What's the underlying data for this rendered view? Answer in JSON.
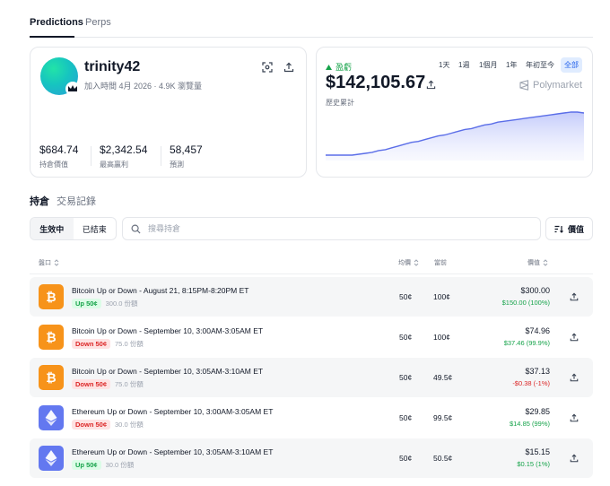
{
  "tabs": [
    {
      "label": "Predictions",
      "active": true
    },
    {
      "label": "Perps",
      "active": false
    }
  ],
  "profile": {
    "username": "trinity42",
    "joined": "加入時間 4月 2026 · 4.9K 瀏覽量",
    "stats": [
      {
        "value": "$684.74",
        "label": "持倉價值"
      },
      {
        "value": "$2,342.54",
        "label": "最高贏利"
      },
      {
        "value": "58,457",
        "label": "預測"
      }
    ]
  },
  "pnl": {
    "label": "盈虧",
    "value": "$142,105.67",
    "sub": "歷史累計",
    "brand": "Polymarket",
    "ranges": [
      "1天",
      "1週",
      "1個月",
      "1年",
      "年初至今",
      "全部"
    ],
    "active_range": "全部",
    "accent": "#5b6ee8",
    "series": [
      0,
      0,
      0,
      0,
      0,
      1,
      2,
      3,
      5,
      6,
      8,
      10,
      12,
      14,
      15,
      17,
      19,
      21,
      22,
      24,
      26,
      28,
      29,
      31,
      33,
      34,
      36,
      37,
      38,
      39,
      40,
      41,
      42,
      43,
      44,
      45,
      46,
      47,
      47,
      46
    ]
  },
  "section_tabs": [
    {
      "label": "持倉",
      "active": true
    },
    {
      "label": "交易記錄",
      "active": false
    }
  ],
  "filters": {
    "active_label": "生效中",
    "closed_label": "已結束",
    "search_placeholder": "搜尋持倉",
    "sort_label": "價值"
  },
  "table": {
    "headers": {
      "market": "盤口",
      "avg": "均價",
      "current": "當前",
      "value": "價值"
    },
    "rows": [
      {
        "coin": "btc",
        "title": "Bitcoin Up or Down - August 21, 8:15PM-8:20PM ET",
        "side": "Up 50¢",
        "dir": "up",
        "shares": "300.0 份額",
        "avg": "50¢",
        "current": "100¢",
        "value": "$300.00",
        "change": "$150.00 (100%)",
        "pos": true
      },
      {
        "coin": "btc",
        "title": "Bitcoin Up or Down - September 10, 3:00AM-3:05AM ET",
        "side": "Down 50¢",
        "dir": "down",
        "shares": "75.0 份額",
        "avg": "50¢",
        "current": "100¢",
        "value": "$74.96",
        "change": "$37.46 (99.9%)",
        "pos": true
      },
      {
        "coin": "btc",
        "title": "Bitcoin Up or Down - September 10, 3:05AM-3:10AM ET",
        "side": "Down 50¢",
        "dir": "down",
        "shares": "75.0 份額",
        "avg": "50¢",
        "current": "49.5¢",
        "value": "$37.13",
        "change": "-$0.38 (-1%)",
        "pos": false
      },
      {
        "coin": "eth",
        "title": "Ethereum Up or Down - September 10, 3:00AM-3:05AM ET",
        "side": "Down 50¢",
        "dir": "down",
        "shares": "30.0 份額",
        "avg": "50¢",
        "current": "99.5¢",
        "value": "$29.85",
        "change": "$14.85 (99%)",
        "pos": true
      },
      {
        "coin": "eth",
        "title": "Ethereum Up or Down - September 10, 3:05AM-3:10AM ET",
        "side": "Up 50¢",
        "dir": "up",
        "shares": "30.0 份額",
        "avg": "50¢",
        "current": "50.5¢",
        "value": "$15.15",
        "change": "$0.15 (1%)",
        "pos": true
      }
    ]
  }
}
